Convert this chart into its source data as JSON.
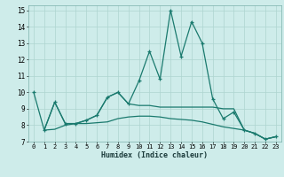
{
  "xlabel": "Humidex (Indice chaleur)",
  "bg_color": "#ceecea",
  "grid_color": "#aed4d0",
  "line_color": "#1a7a6e",
  "xlim": [
    -0.5,
    23.5
  ],
  "ylim": [
    7,
    15.3
  ],
  "xticks": [
    0,
    1,
    2,
    3,
    4,
    5,
    6,
    7,
    8,
    9,
    10,
    11,
    12,
    13,
    14,
    15,
    16,
    17,
    18,
    19,
    20,
    21,
    22,
    23
  ],
  "yticks": [
    7,
    8,
    9,
    10,
    11,
    12,
    13,
    14,
    15
  ],
  "series0_x": [
    0,
    1,
    2,
    3,
    4,
    5,
    6,
    7,
    8,
    9,
    10,
    11,
    12,
    13,
    14,
    15,
    16,
    17,
    18,
    19,
    20,
    21,
    22,
    23
  ],
  "series0_y": [
    10.0,
    7.7,
    9.4,
    8.1,
    8.1,
    8.3,
    8.6,
    9.7,
    10.0,
    9.3,
    10.7,
    12.5,
    10.8,
    15.0,
    12.2,
    14.3,
    13.0,
    9.6,
    8.4,
    8.8,
    7.7,
    7.5,
    7.15,
    7.3
  ],
  "series1_x": [
    1,
    2,
    3,
    4,
    5,
    6,
    7,
    8,
    9,
    10,
    11,
    12,
    13,
    14,
    15,
    16,
    17,
    18,
    19,
    20,
    21,
    22,
    23
  ],
  "series1_y": [
    7.7,
    9.4,
    8.1,
    8.1,
    8.3,
    8.6,
    9.7,
    10.0,
    9.3,
    9.2,
    9.2,
    9.1,
    9.1,
    9.1,
    9.1,
    9.1,
    9.1,
    9.0,
    9.0,
    7.7,
    7.5,
    7.15,
    7.3
  ],
  "series2_x": [
    1,
    2,
    3,
    4,
    5,
    6,
    7,
    8,
    9,
    10,
    11,
    12,
    13,
    14,
    15,
    16,
    17,
    18,
    19,
    20,
    21,
    22,
    23
  ],
  "series2_y": [
    7.7,
    7.75,
    8.0,
    8.1,
    8.1,
    8.15,
    8.2,
    8.4,
    8.5,
    8.55,
    8.55,
    8.5,
    8.4,
    8.35,
    8.3,
    8.2,
    8.05,
    7.9,
    7.8,
    7.7,
    7.5,
    7.15,
    7.3
  ]
}
